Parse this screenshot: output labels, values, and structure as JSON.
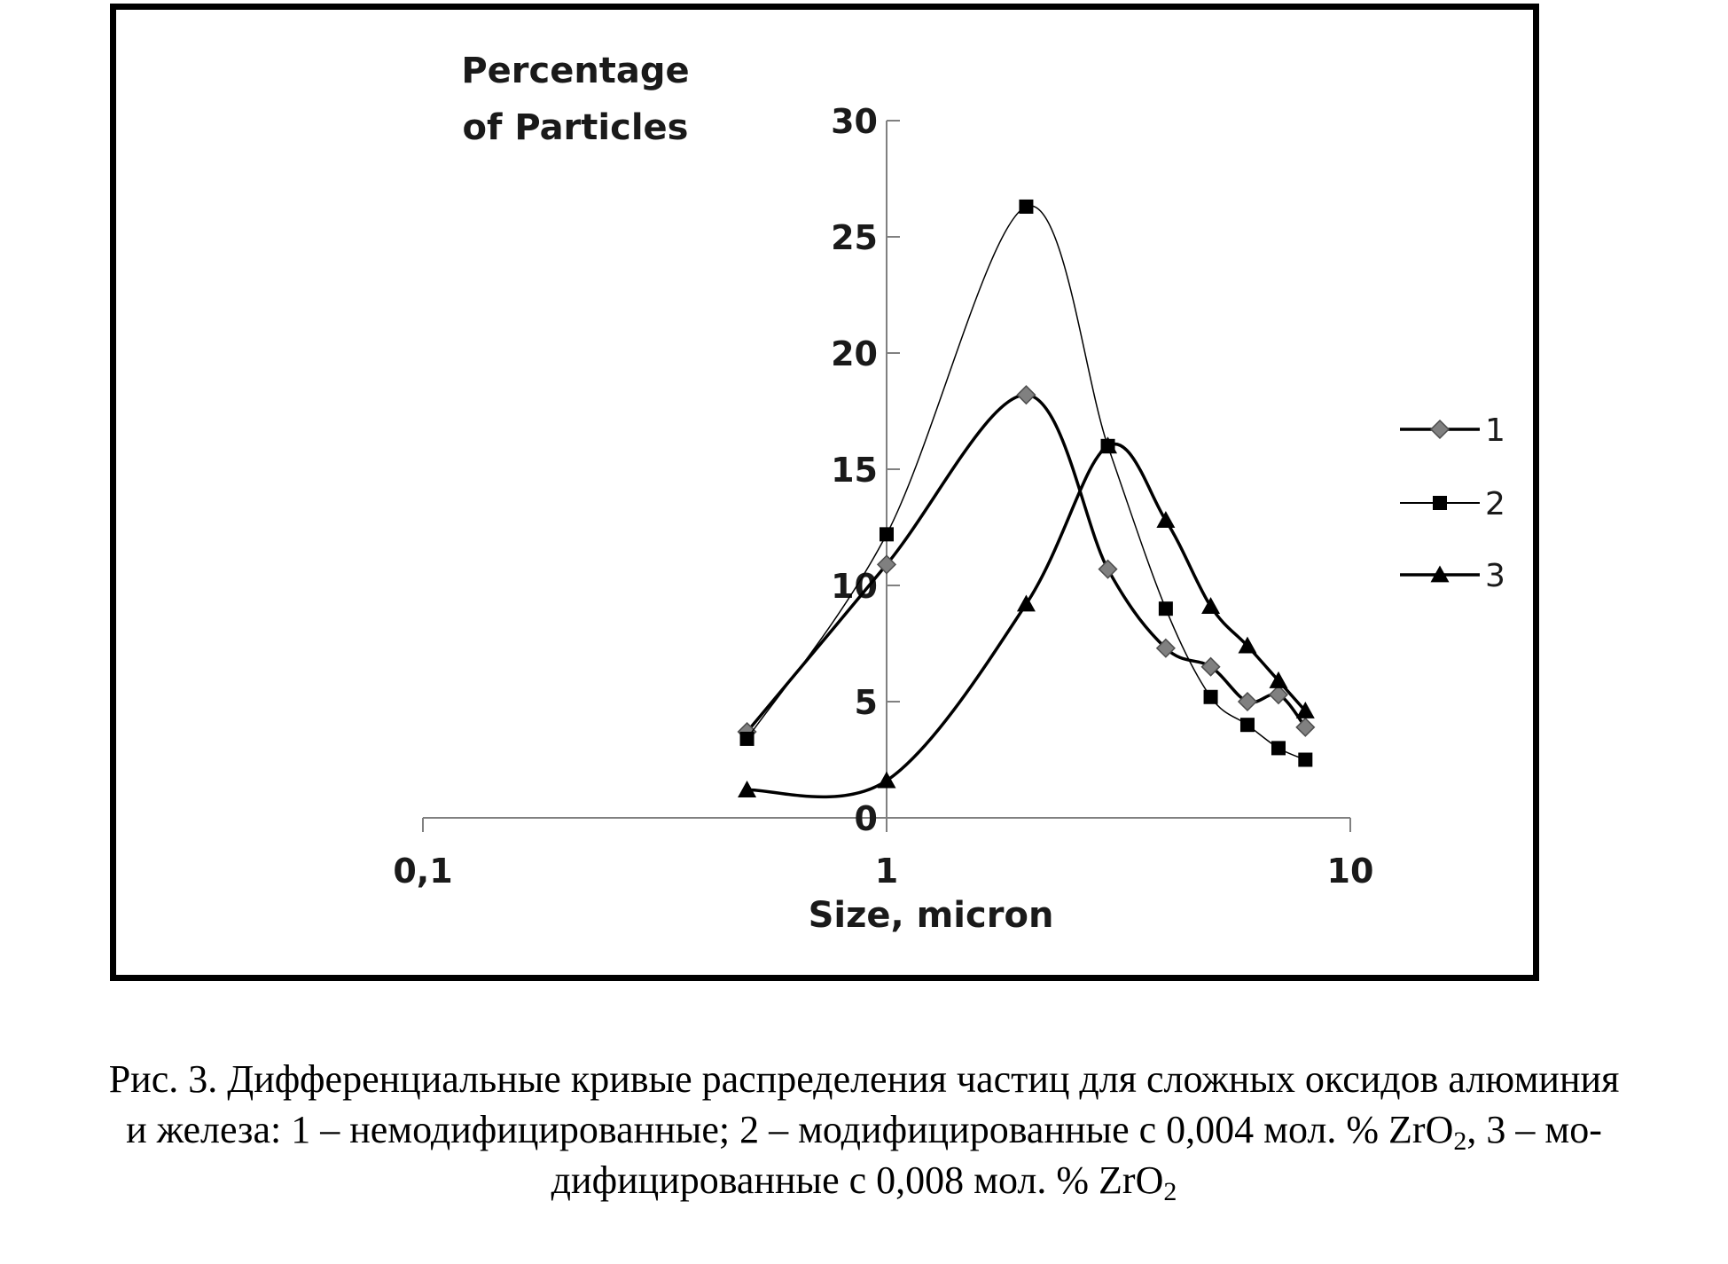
{
  "chart_data": {
    "type": "line",
    "ylabel": [
      "Percentage",
      "of Particles"
    ],
    "xlabel": "Size, micron",
    "x_scale": "log",
    "xlim": [
      0.1,
      10
    ],
    "ylim": [
      0,
      30
    ],
    "x_ticks": [
      {
        "value": 0.1,
        "label": "0,1"
      },
      {
        "value": 1,
        "label": "1"
      },
      {
        "value": 10,
        "label": "10"
      }
    ],
    "y_ticks": [
      {
        "value": 0,
        "label": "0"
      },
      {
        "value": 5,
        "label": "5"
      },
      {
        "value": 10,
        "label": "10"
      },
      {
        "value": 15,
        "label": "15"
      },
      {
        "value": 20,
        "label": "20"
      },
      {
        "value": 25,
        "label": "25"
      },
      {
        "value": 30,
        "label": "30"
      }
    ],
    "grid": false,
    "legend_position": "right",
    "series": [
      {
        "name": "1",
        "marker": "diamond",
        "color": "#808080",
        "x": [
          0.5,
          1,
          2,
          3,
          4,
          5,
          6,
          7,
          8
        ],
        "y": [
          3.7,
          10.9,
          18.2,
          10.7,
          7.3,
          6.5,
          5.0,
          5.3,
          3.9
        ]
      },
      {
        "name": "2",
        "marker": "square",
        "color": "#000000",
        "x": [
          0.5,
          1,
          2,
          3,
          4,
          5,
          6,
          7,
          8
        ],
        "y": [
          3.4,
          12.2,
          26.3,
          16.0,
          9.0,
          5.2,
          4.0,
          3.0,
          2.5
        ]
      },
      {
        "name": "3",
        "marker": "triangle",
        "color": "#000000",
        "x": [
          0.5,
          1,
          2,
          3,
          4,
          5,
          6,
          7,
          8
        ],
        "y": [
          1.2,
          1.6,
          9.2,
          16.0,
          12.8,
          9.1,
          7.4,
          5.9,
          4.6
        ]
      }
    ]
  },
  "caption": {
    "line1": "Рис. 3. Дифференциальные кривые распределения частиц для сложных оксидов алюминия",
    "line2_before": "и железа: 1 – немодифицированные; 2 – модифицированные с 0,004 мол. % ZrO",
    "line2_sub": "2",
    "line2_after": ", 3 – мо-",
    "line3_before": "дифицированные с 0,008 мол. % ZrO",
    "line3_sub": "2"
  }
}
